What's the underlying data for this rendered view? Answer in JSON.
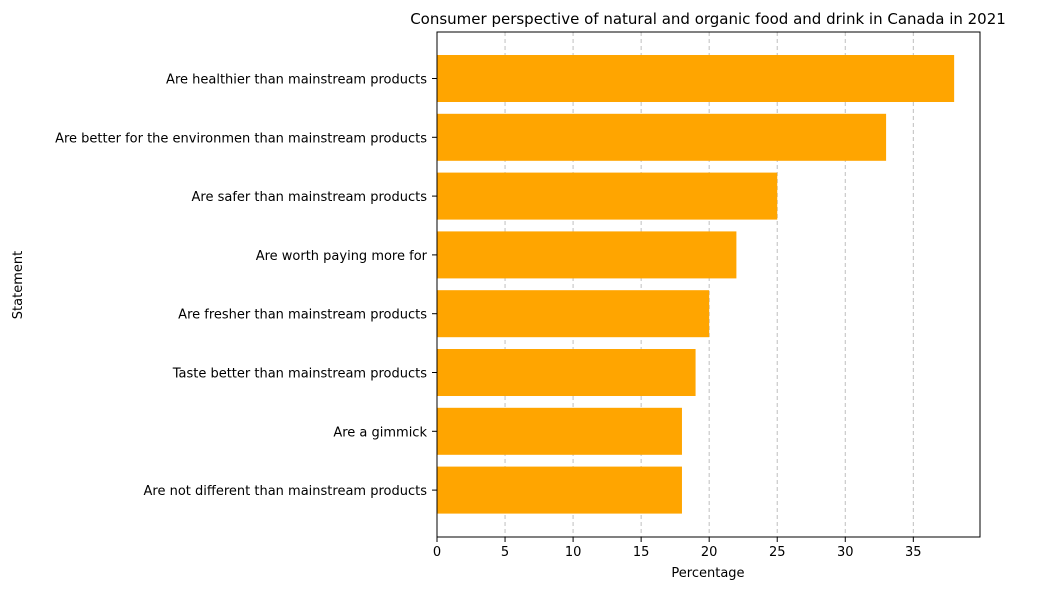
{
  "chart_data": {
    "type": "bar",
    "orientation": "horizontal",
    "title": "Consumer perspective of natural and organic food and drink in Canada in 2021",
    "xlabel": "Percentage",
    "ylabel": "Statement",
    "xlim": [
      0,
      39.9
    ],
    "xticks": [
      0,
      5,
      10,
      15,
      20,
      25,
      30,
      35
    ],
    "grid": "x-dashed",
    "bar_color": "#ffa500",
    "categories": [
      "Are healthier than mainstream products",
      "Are better for the environmen than mainstream products",
      "Are safer than mainstream products",
      "Are worth paying more for",
      "Are fresher than mainstream products",
      "Taste better than mainstream products",
      "Are a gimmick",
      "Are not different than mainstream products"
    ],
    "values": [
      38,
      33,
      25,
      22,
      20,
      19,
      18,
      18
    ]
  }
}
